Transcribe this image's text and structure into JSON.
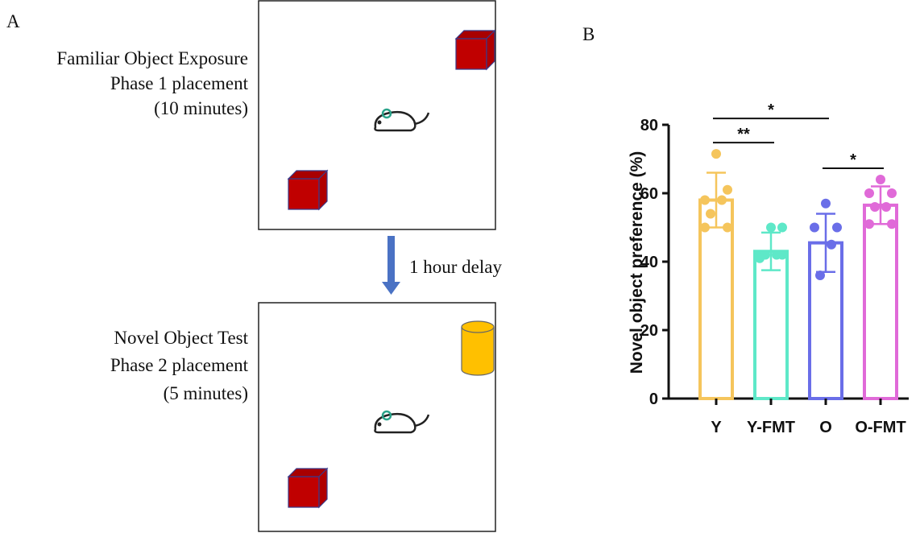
{
  "panel_a": {
    "label": "A",
    "phase1": [
      "Familiar Object Exposure",
      "Phase 1 placement",
      "(10 minutes)"
    ],
    "delay": "1 hour delay",
    "phase2": [
      "Novel Object Test",
      "Phase 2 placement",
      "(5 minutes)"
    ]
  },
  "chart_data": {
    "type": "bar",
    "panel_label": "B",
    "ylabel": "Novel object preference (%)",
    "categories": [
      "Y",
      "Y-FMT",
      "O",
      "O-FMT"
    ],
    "values": [
      58,
      43,
      45.5,
      56.5
    ],
    "errors": [
      8,
      5.5,
      8.5,
      5.5
    ],
    "colors": [
      "#f5c55c",
      "#5ee8c8",
      "#6a6ee8",
      "#e06ad8"
    ],
    "points": [
      [
        71.5,
        61,
        58,
        58,
        54,
        50,
        50
      ],
      [
        50,
        50,
        42,
        42,
        42,
        42,
        41
      ],
      [
        57,
        50,
        50,
        45,
        36
      ],
      [
        64,
        60,
        60,
        56,
        56,
        51,
        51
      ]
    ],
    "annotations": [
      {
        "between": [
          "Y",
          "Y-FMT"
        ],
        "text": "**"
      },
      {
        "between": [
          "O",
          "O-FMT"
        ],
        "text": "*"
      },
      {
        "between": [
          "Y",
          "O"
        ],
        "text": "*"
      }
    ],
    "ylim": [
      0,
      80
    ],
    "yticks": [
      0,
      20,
      40,
      60,
      80
    ]
  }
}
